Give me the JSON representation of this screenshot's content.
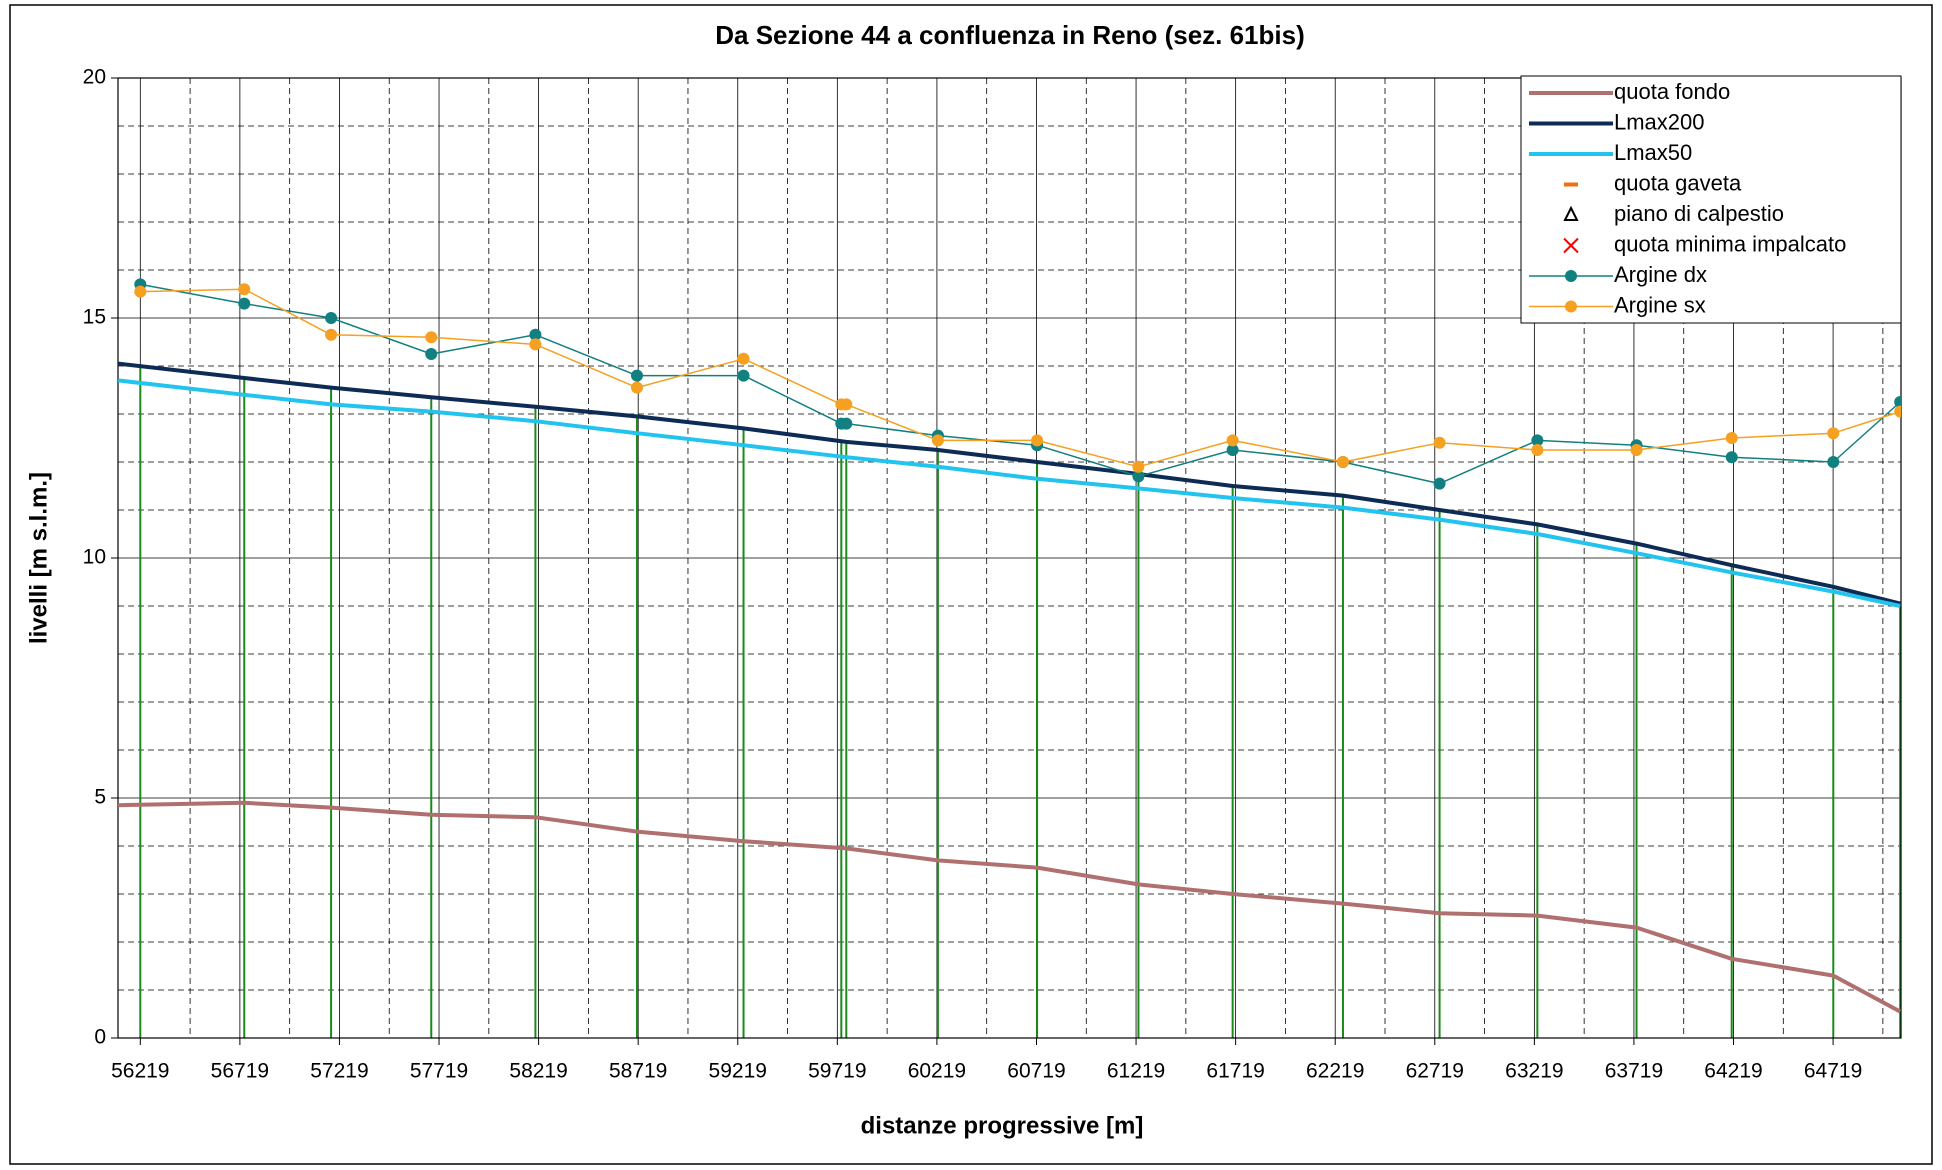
{
  "chart_data": {
    "type": "line",
    "title": "Da Sezione 44 a confluenza in Reno (sez. 61bis)",
    "xlabel": "distanze progressive [m]",
    "ylabel": "livelli [m s.l.m.]",
    "xlim": [
      56107,
      65060
    ],
    "ylim": [
      0,
      20
    ],
    "xticks": [
      56219,
      56719,
      57219,
      57719,
      58219,
      58719,
      59219,
      59719,
      60219,
      60719,
      61219,
      61719,
      62219,
      62719,
      63219,
      63719,
      64219,
      64719
    ],
    "yticks": [
      0,
      5,
      10,
      15,
      20
    ],
    "grid": true,
    "x_minor_divisions": 2,
    "y_minor_divisions": 5,
    "legend": "upper right",
    "section_color": "#1a8a1a",
    "series": [
      {
        "name": "quota fondo",
        "color": "#b07070",
        "width": 4,
        "marker": "none",
        "x": [
          56107,
          56741,
          57177,
          57680,
          58203,
          58713,
          59248,
          59764,
          60224,
          60722,
          61231,
          61704,
          62258,
          62743,
          63234,
          63732,
          64210,
          64720,
          65056
        ],
        "values": [
          4.85,
          4.9,
          4.8,
          4.65,
          4.6,
          4.3,
          4.1,
          3.95,
          3.7,
          3.55,
          3.2,
          3.0,
          2.8,
          2.6,
          2.55,
          2.3,
          1.65,
          1.3,
          0.55
        ]
      },
      {
        "name": "Lmax200",
        "color": "#0d2b55",
        "width": 4,
        "marker": "none",
        "x": [
          56107,
          56741,
          57177,
          57680,
          58203,
          58713,
          59248,
          59764,
          60224,
          60722,
          61231,
          61704,
          62258,
          62743,
          63234,
          63732,
          64210,
          64720,
          65056
        ],
        "values": [
          14.05,
          13.75,
          13.55,
          13.35,
          13.15,
          12.95,
          12.7,
          12.42,
          12.25,
          12.0,
          11.75,
          11.5,
          11.3,
          11.0,
          10.7,
          10.3,
          9.85,
          9.4,
          9.05
        ]
      },
      {
        "name": "Lmax50",
        "color": "#22c3ee",
        "width": 4,
        "marker": "none",
        "x": [
          56107,
          56741,
          57177,
          57680,
          58203,
          58713,
          59248,
          59764,
          60224,
          60722,
          61231,
          61704,
          62258,
          62743,
          63234,
          63732,
          64210,
          64720,
          65056
        ],
        "values": [
          13.7,
          13.4,
          13.2,
          13.05,
          12.85,
          12.6,
          12.35,
          12.1,
          11.9,
          11.65,
          11.45,
          11.25,
          11.05,
          10.8,
          10.5,
          10.1,
          9.7,
          9.3,
          9.0
        ]
      },
      {
        "name": "quota gaveta",
        "color": "#f07010",
        "width": 0,
        "marker": "dash",
        "x": [],
        "values": []
      },
      {
        "name": "piano di calpestio",
        "color": "#000000",
        "width": 0,
        "marker": "triangle",
        "x": [],
        "values": []
      },
      {
        "name": "quota minima impalcato",
        "color": "#ff0000",
        "width": 0,
        "marker": "cross",
        "x": [],
        "values": []
      },
      {
        "name": "Argine dx",
        "color": "#128080",
        "width": 1.5,
        "marker": "circle",
        "x": [
          56219,
          56741,
          57177,
          57680,
          58203,
          58713,
          59248,
          59739,
          59764,
          60224,
          60722,
          61231,
          61704,
          62258,
          62743,
          63234,
          63732,
          64210,
          64720,
          65056
        ],
        "values": [
          15.7,
          15.3,
          15.0,
          14.25,
          14.65,
          13.8,
          13.8,
          12.8,
          12.8,
          12.55,
          12.35,
          11.7,
          12.25,
          12.0,
          11.55,
          12.45,
          12.35,
          12.1,
          12.0,
          13.25
        ]
      },
      {
        "name": "Argine sx",
        "color": "#f5a020",
        "width": 1.5,
        "marker": "circle",
        "x": [
          56219,
          56741,
          57177,
          57680,
          58203,
          58713,
          59248,
          59739,
          59764,
          60224,
          60722,
          61231,
          61704,
          62258,
          62743,
          63234,
          63732,
          64210,
          64720,
          65056
        ],
        "values": [
          15.55,
          15.6,
          14.65,
          14.6,
          14.45,
          13.55,
          14.15,
          13.2,
          13.2,
          12.45,
          12.45,
          11.9,
          12.45,
          12.0,
          12.4,
          12.25,
          12.25,
          12.5,
          12.6,
          13.05
        ]
      }
    ]
  }
}
